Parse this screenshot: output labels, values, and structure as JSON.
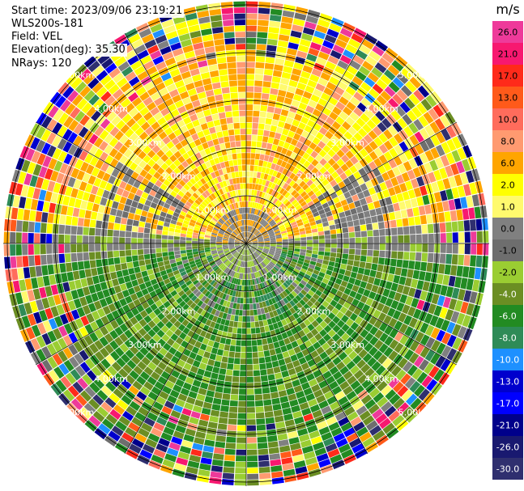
{
  "header": {
    "start_time": "Start time: 2023/09/06 23:19:21",
    "instrument": "WLS200s-181",
    "field": "Field: VEL",
    "elevation": "Elevation(deg): 35.30",
    "nrays": "NRays: 120"
  },
  "chart_data": {
    "type": "heatmap",
    "projection": "polar-ppi",
    "field": "VEL",
    "nrays": 120,
    "range_rings": [
      "1.00km",
      "2.00km",
      "3.00km",
      "4.00km",
      "5.00km"
    ],
    "colorbar": {
      "unit": "m/s",
      "ticks": [
        "26.0",
        "21.0",
        "17.0",
        "13.0",
        "10.0",
        "8.0",
        "6.0",
        "2.0",
        "1.0",
        "0.0",
        "-1.0",
        "-2.0",
        "-4.0",
        "-6.0",
        "-8.0",
        "-10.0",
        "-13.0",
        "-17.0",
        "-21.0",
        "-26.0",
        "-30.0"
      ],
      "colors": [
        "#ee3a9a",
        "#f71870",
        "#ff2a1a",
        "#ff5a1a",
        "#ff6c5c",
        "#ff9a70",
        "#ffa500",
        "#ffff00",
        "#fffa6e",
        "#808080",
        "#6e6e6e",
        "#9acd32",
        "#6b8e23",
        "#228b22",
        "#2e8b57",
        "#1e90ff",
        "#0000cd",
        "#0000ff",
        "#00008b",
        "#191970",
        "#2f2f6f"
      ]
    },
    "approximate_pattern": {
      "north_half": "positive velocities, yellow to orange (1 to 8 m/s)",
      "south_half": "negative velocities, green (-2 to -8 m/s)",
      "near_center": "grey (about 0 m/s)",
      "outer_ring": "noisy mixed colors beyond about 3.5km"
    }
  }
}
